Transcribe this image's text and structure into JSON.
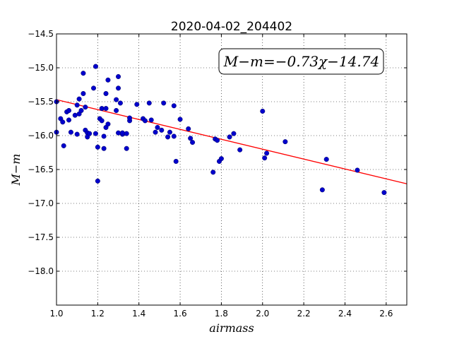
{
  "chart_data": {
    "type": "scatter",
    "title": "2020-04-02_204402",
    "xlabel": "airmass",
    "ylabel": "M−m",
    "xlim": [
      1.0,
      2.7
    ],
    "ylim": [
      -18.5,
      -14.5
    ],
    "y_inverted": true,
    "grid": true,
    "x_ticks": [
      1.0,
      1.2,
      1.4,
      1.6,
      1.8,
      2.0,
      2.2,
      2.4,
      2.6
    ],
    "x_tick_labels": [
      "1.0",
      "1.2",
      "1.4",
      "1.6",
      "1.8",
      "2.0",
      "2.2",
      "2.4",
      "2.6"
    ],
    "y_ticks": [
      -14.5,
      -15.0,
      -15.5,
      -16.0,
      -16.5,
      -17.0,
      -17.5,
      -18.0
    ],
    "y_tick_labels": [
      "−14.5",
      "−15.0",
      "−15.5",
      "−16.0",
      "−16.5",
      "−17.0",
      "−17.5",
      "−18.0"
    ],
    "annotation": "M−m=−0.73χ−14.74",
    "fit_line": {
      "slope": -0.73,
      "intercept": -14.74,
      "x_range": [
        1.0,
        2.7
      ],
      "color": "#ff0000"
    },
    "point_color": "#0000cc",
    "points": [
      [
        1.0,
        -15.5
      ],
      [
        1.0,
        -15.95
      ],
      [
        1.02,
        -15.75
      ],
      [
        1.03,
        -15.8
      ],
      [
        1.035,
        -16.15
      ],
      [
        1.05,
        -15.65
      ],
      [
        1.06,
        -15.63
      ],
      [
        1.06,
        -15.77
      ],
      [
        1.07,
        -15.95
      ],
      [
        1.09,
        -15.7
      ],
      [
        1.1,
        -15.55
      ],
      [
        1.1,
        -15.98
      ],
      [
        1.11,
        -15.46
      ],
      [
        1.11,
        -15.68
      ],
      [
        1.12,
        -15.63
      ],
      [
        1.13,
        -15.38
      ],
      [
        1.13,
        -15.08
      ],
      [
        1.14,
        -15.92
      ],
      [
        1.14,
        -15.58
      ],
      [
        1.15,
        -15.96
      ],
      [
        1.15,
        -16.02
      ],
      [
        1.16,
        -15.97
      ],
      [
        1.18,
        -15.3
      ],
      [
        1.19,
        -15.97
      ],
      [
        1.19,
        -14.98
      ],
      [
        1.2,
        -16.67
      ],
      [
        1.2,
        -16.17
      ],
      [
        1.21,
        -15.75
      ],
      [
        1.22,
        -15.6
      ],
      [
        1.22,
        -15.78
      ],
      [
        1.23,
        -16.01
      ],
      [
        1.23,
        -16.19
      ],
      [
        1.24,
        -15.38
      ],
      [
        1.24,
        -15.6
      ],
      [
        1.24,
        -15.88
      ],
      [
        1.25,
        -15.83
      ],
      [
        1.25,
        -15.18
      ],
      [
        1.29,
        -15.47
      ],
      [
        1.29,
        -15.63
      ],
      [
        1.3,
        -15.96
      ],
      [
        1.3,
        -15.3
      ],
      [
        1.3,
        -15.13
      ],
      [
        1.31,
        -15.52
      ],
      [
        1.32,
        -15.98
      ],
      [
        1.32,
        -15.96
      ],
      [
        1.34,
        -15.97
      ],
      [
        1.34,
        -16.19
      ],
      [
        1.355,
        -15.78
      ],
      [
        1.355,
        -15.74
      ],
      [
        1.39,
        -15.54
      ],
      [
        1.42,
        -15.75
      ],
      [
        1.43,
        -15.78
      ],
      [
        1.45,
        -15.52
      ],
      [
        1.46,
        -15.77
      ],
      [
        1.48,
        -15.95
      ],
      [
        1.49,
        -15.88
      ],
      [
        1.51,
        -15.92
      ],
      [
        1.52,
        -15.52
      ],
      [
        1.54,
        -16.02
      ],
      [
        1.55,
        -15.95
      ],
      [
        1.57,
        -16.01
      ],
      [
        1.57,
        -15.56
      ],
      [
        1.58,
        -16.38
      ],
      [
        1.6,
        -15.76
      ],
      [
        1.64,
        -15.9
      ],
      [
        1.65,
        -16.04
      ],
      [
        1.66,
        -16.1
      ],
      [
        1.76,
        -16.54
      ],
      [
        1.77,
        -16.05
      ],
      [
        1.78,
        -16.07
      ],
      [
        1.79,
        -16.38
      ],
      [
        1.8,
        -16.34
      ],
      [
        1.84,
        -16.02
      ],
      [
        1.86,
        -15.97
      ],
      [
        1.89,
        -16.21
      ],
      [
        2.0,
        -15.64
      ],
      [
        2.01,
        -16.33
      ],
      [
        2.02,
        -16.26
      ],
      [
        2.11,
        -16.09
      ],
      [
        2.29,
        -16.8
      ],
      [
        2.31,
        -16.35
      ],
      [
        2.46,
        -16.51
      ],
      [
        2.59,
        -16.84
      ]
    ]
  }
}
